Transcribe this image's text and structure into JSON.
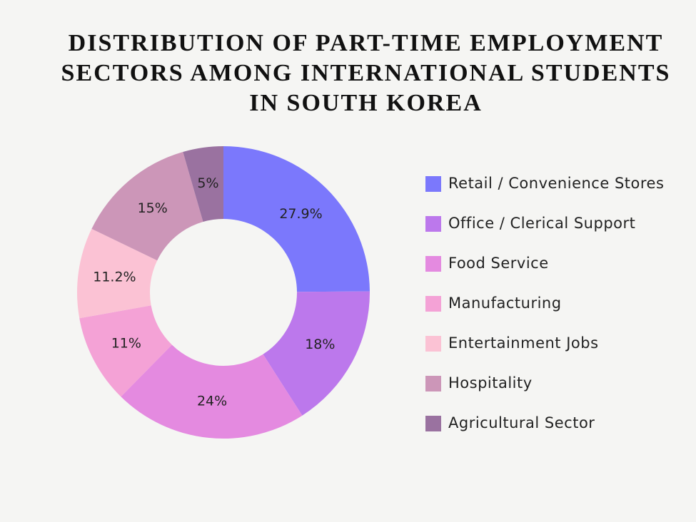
{
  "chart_data": {
    "type": "donut",
    "title": "DISTRIBUTION OF PART-TIME EMPLOYMENT SECTORS AMONG INTERNATIONAL STUDENTS IN SOUTH KOREA",
    "categories": [
      "Retail / Convenience Stores",
      "Office / Clerical Support",
      "Food Service",
      "Manufacturing",
      "Entertainment Jobs",
      "Hospitality",
      "Agricultural Sector"
    ],
    "values": [
      27.9,
      18,
      24,
      11,
      11.2,
      15,
      5
    ],
    "value_labels": [
      "27.9%",
      "18%",
      "24%",
      "11%",
      "11.2%",
      "15%",
      "5%"
    ],
    "colors": [
      "#7b78fc",
      "#bc78ec",
      "#e48ae0",
      "#f4a2d6",
      "#fbc2d4",
      "#cc96b8",
      "#9a72a0"
    ],
    "legend": "right"
  }
}
